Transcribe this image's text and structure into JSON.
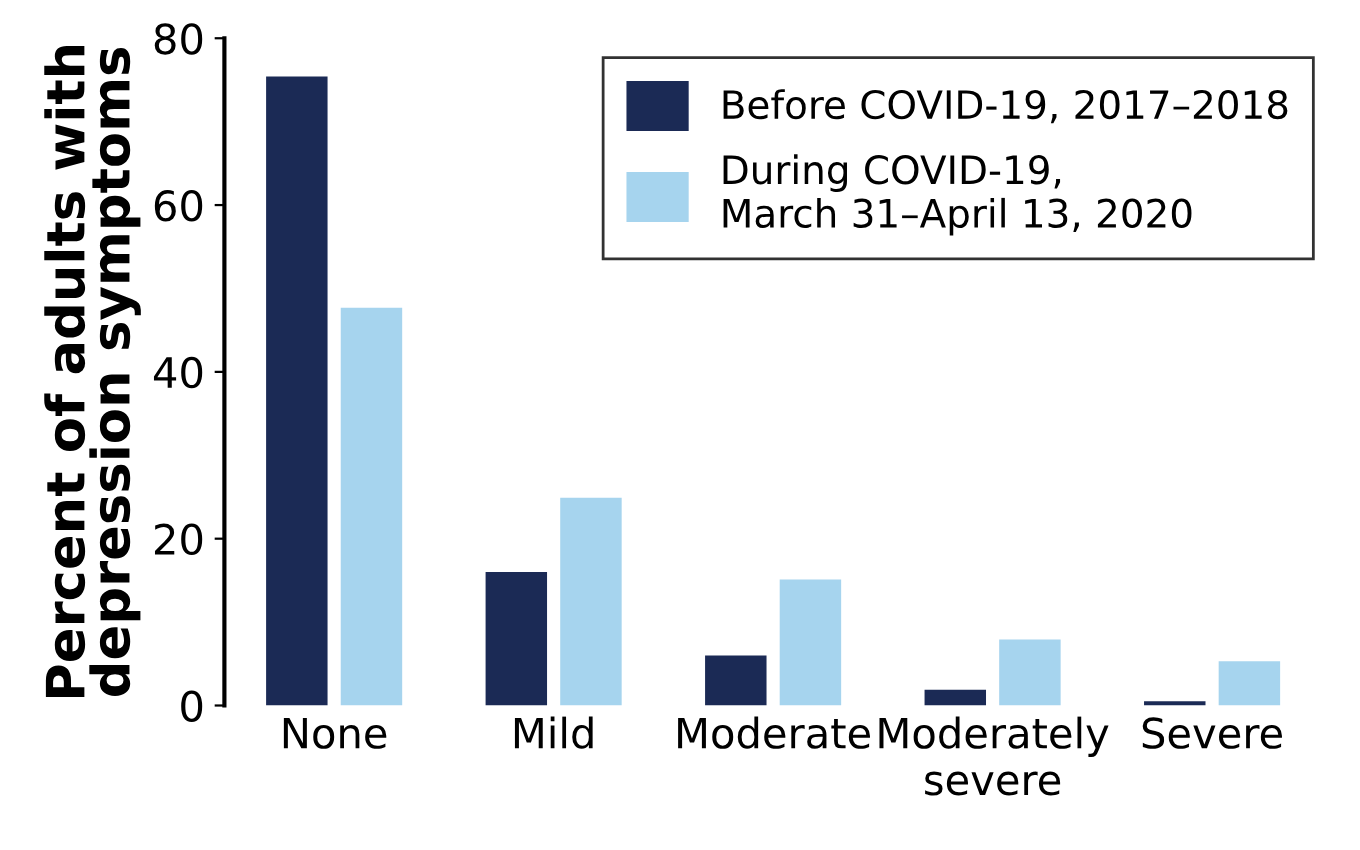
{
  "chart_data": {
    "type": "bar",
    "ylabel": "Percent of adults with\ndepression symptoms",
    "categories": [
      "None",
      "Mild",
      "Moderate",
      "Moderately\nsevere",
      "Severe"
    ],
    "series": [
      {
        "name": "Before COVID-19, 2017–2018",
        "color": "#1b2a55",
        "values": [
          75.4,
          16.0,
          6.0,
          1.9,
          0.5
        ]
      },
      {
        "name": "During COVID-19,\nMarch 31–April 13, 2020",
        "color": "#a6d4ee",
        "values": [
          47.7,
          24.9,
          15.1,
          7.9,
          5.3
        ]
      }
    ],
    "ylim": [
      0,
      80
    ],
    "yticks": [
      0,
      20,
      40,
      60,
      80
    ],
    "grid": false,
    "legend": "top right"
  }
}
